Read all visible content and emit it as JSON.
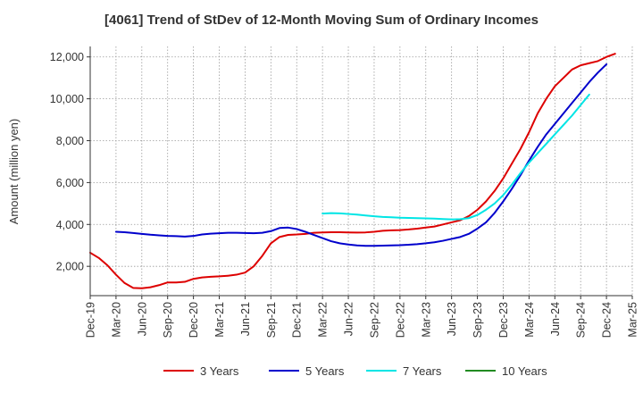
{
  "chart_data": {
    "type": "line",
    "title": "[4061]  Trend of StDev of 12-Month Moving Sum of Ordinary Incomes",
    "ylabel": "Amount (million yen)",
    "xlabel": "",
    "x_start": "Dec-19",
    "x_ticks": [
      "Dec-19",
      "Mar-20",
      "Jun-20",
      "Sep-20",
      "Dec-20",
      "Mar-21",
      "Jun-21",
      "Sep-21",
      "Dec-21",
      "Mar-22",
      "Jun-22",
      "Sep-22",
      "Dec-22",
      "Mar-23",
      "Jun-23",
      "Sep-23",
      "Dec-23",
      "Mar-24",
      "Jun-24",
      "Sep-24",
      "Dec-24",
      "Mar-25"
    ],
    "y_ticks": [
      2000,
      4000,
      6000,
      8000,
      10000,
      12000
    ],
    "y_tick_labels": [
      "2,000",
      "4,000",
      "6,000",
      "8,000",
      "10,000",
      "12,000"
    ],
    "ylim": [
      600,
      12500
    ],
    "grid": true,
    "legend_position": "bottom",
    "series": [
      {
        "name": "3 Years",
        "color": "#dd0000",
        "start_month": 0,
        "values": [
          2650,
          2400,
          2050,
          1600,
          1200,
          970,
          950,
          1000,
          1100,
          1230,
          1230,
          1260,
          1400,
          1470,
          1500,
          1520,
          1550,
          1600,
          1700,
          2000,
          2500,
          3100,
          3400,
          3500,
          3520,
          3550,
          3600,
          3620,
          3630,
          3630,
          3620,
          3610,
          3620,
          3650,
          3700,
          3720,
          3730,
          3760,
          3800,
          3850,
          3900,
          4000,
          4100,
          4200,
          4400,
          4700,
          5100,
          5600,
          6200,
          6900,
          7600,
          8400,
          9300,
          10000,
          10600,
          11000,
          11400,
          11600,
          11700,
          11800,
          12000,
          12150
        ]
      },
      {
        "name": "5 Years",
        "color": "#0000cc",
        "start_month": 3,
        "values": [
          3650,
          3630,
          3590,
          3550,
          3510,
          3480,
          3450,
          3440,
          3420,
          3450,
          3520,
          3560,
          3580,
          3600,
          3600,
          3590,
          3580,
          3600,
          3680,
          3830,
          3850,
          3780,
          3650,
          3500,
          3350,
          3200,
          3100,
          3040,
          3000,
          2980,
          2980,
          2990,
          3000,
          3010,
          3030,
          3060,
          3100,
          3150,
          3220,
          3310,
          3400,
          3550,
          3800,
          4100,
          4550,
          5100,
          5700,
          6350,
          7050,
          7700,
          8300,
          8800,
          9300,
          9800,
          10300,
          10800,
          11250,
          11650
        ]
      },
      {
        "name": "7 Years",
        "color": "#00e5e5",
        "start_month": 27,
        "values": [
          4520,
          4540,
          4530,
          4500,
          4470,
          4430,
          4390,
          4360,
          4340,
          4320,
          4310,
          4300,
          4290,
          4280,
          4260,
          4240,
          4250,
          4300,
          4450,
          4700,
          5000,
          5400,
          5900,
          6450,
          6950,
          7400,
          7850,
          8300,
          8750,
          9200,
          9700,
          10200
        ]
      },
      {
        "name": "10 Years",
        "color": "#228b22",
        "start_month": 0,
        "values": []
      }
    ]
  }
}
